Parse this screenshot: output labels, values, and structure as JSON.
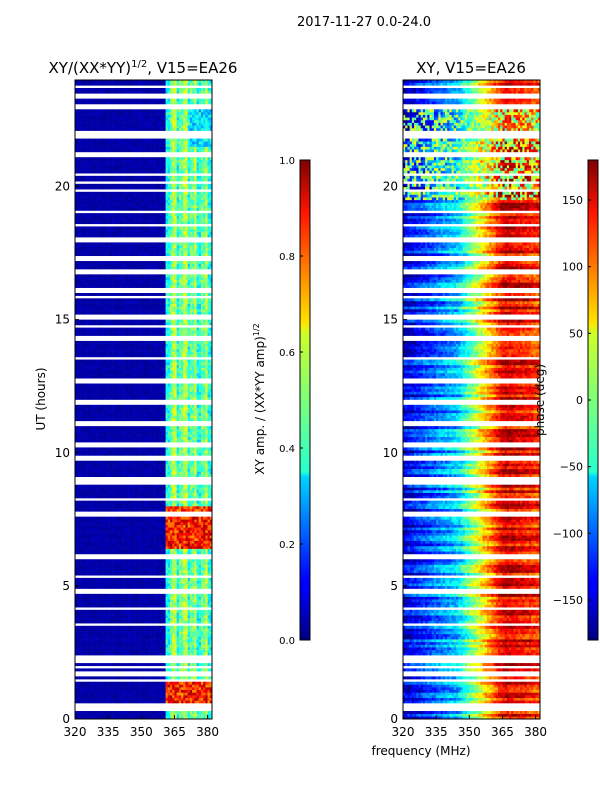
{
  "figure": {
    "suptitle": "2017-11-27 0.0-24.0",
    "shared_xlabel": "frequency (MHz)"
  },
  "chart_data": [
    {
      "type": "heatmap",
      "title": "XY/(XX*YY)^1/2, V15=EA26",
      "title_main": "XY/(XX*YY)",
      "title_sup": "1/2",
      "title_tail": ", V15=EA26",
      "xlabel": "frequency (MHz)",
      "ylabel": "UT (hours)",
      "xlim": [
        320,
        382
      ],
      "ylim": [
        0,
        24
      ],
      "xticks": [
        320,
        335,
        350,
        365,
        380
      ],
      "yticks": [
        0,
        5,
        10,
        15,
        20
      ],
      "colorbar": {
        "label": "XY amp. / (XX*YY amp)^1/2",
        "label_main": "XY amp. / (XX*YY amp)",
        "label_sup": "1/2",
        "range": [
          0.0,
          1.0
        ],
        "ticks": [
          "0.0",
          "0.2",
          "0.4",
          "0.6",
          "0.8",
          "1.0"
        ],
        "colormap": "jet"
      },
      "description": "Normalized cross-hand amplitude vs frequency and time; mostly near 0 below 362 MHz, 0.3-0.6 in channels 362-380 MHz, peaks ~0.9 around 6.5-8 UT and 0.5-1.5 UT."
    },
    {
      "type": "heatmap",
      "title": "XY, V15=EA26",
      "xlabel": "frequency (MHz)",
      "ylabel": "",
      "xlim": [
        320,
        382
      ],
      "ylim": [
        0,
        24
      ],
      "xticks": [
        320,
        335,
        350,
        365,
        380
      ],
      "yticks": [
        0,
        5,
        10,
        15,
        20
      ],
      "colorbar": {
        "label": "phase (deg)",
        "range": [
          -180,
          180
        ],
        "ticks": [
          "−150",
          "−100",
          "−50",
          "0",
          "50",
          "100",
          "150"
        ],
        "colormap": "jet"
      },
      "description": "Cross-hand phase vs frequency and time; phase ramps from about -150 deg near 320 MHz through -60 deg near 345 MHz to +150 deg near 365 MHz, with noisy rows."
    }
  ],
  "gap_rows_hours": [
    0.4,
    0.55,
    1.45,
    1.7,
    1.95,
    2.15,
    2.3,
    3.55,
    4.15,
    4.8,
    5.35,
    6.1,
    7.7,
    8.25,
    8.85,
    9.0,
    9.8,
    10.3,
    11.1,
    11.9,
    12.7,
    13.55,
    14.3,
    14.75,
    15.1,
    15.85,
    16.05,
    16.15,
    16.8,
    17.3,
    18.0,
    18.55,
    19.05,
    19.85,
    20.15,
    20.45,
    21.2,
    21.85,
    21.95,
    22.05,
    23.0,
    23.4,
    23.75
  ]
}
